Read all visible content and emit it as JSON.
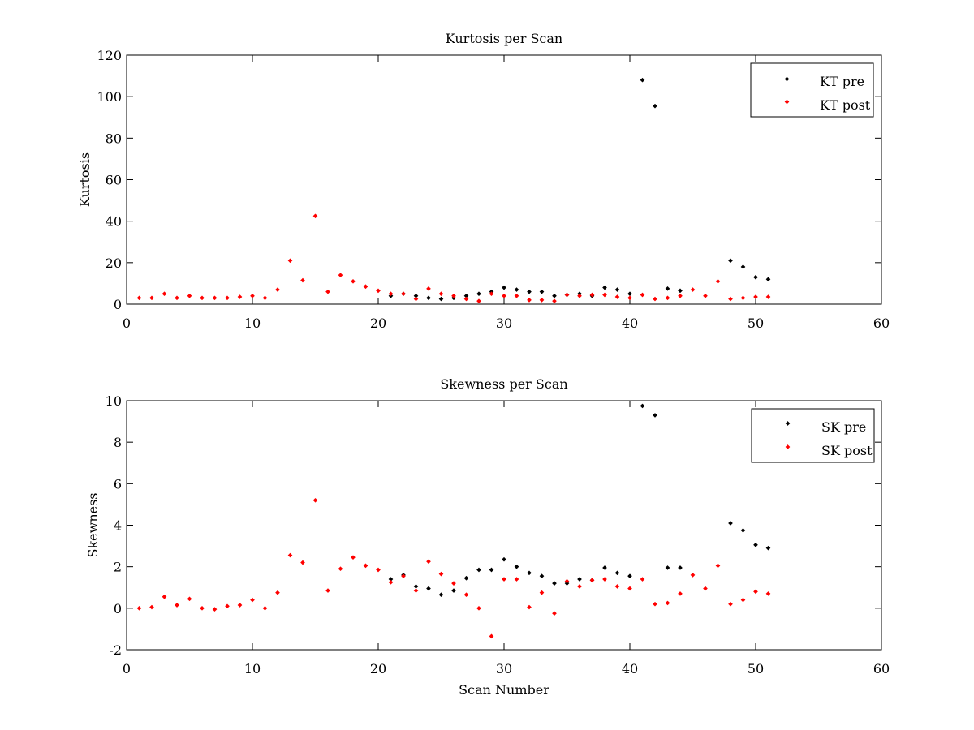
{
  "chart_data": [
    {
      "type": "scatter",
      "title": "Kurtosis per Scan",
      "xlabel": "",
      "ylabel": "Kurtosis",
      "xlim": [
        0,
        60
      ],
      "ylim": [
        0,
        120
      ],
      "xticks": [
        "0",
        "10",
        "20",
        "30",
        "40",
        "50",
        "60"
      ],
      "yticks": [
        "0",
        "20",
        "40",
        "60",
        "80",
        "100",
        "120"
      ],
      "grid": false,
      "legend_position": "top-right",
      "series": [
        {
          "name": "KT pre",
          "color": "#000000",
          "x": [
            21,
            22,
            23,
            24,
            25,
            26,
            27,
            28,
            29,
            30,
            31,
            32,
            33,
            34,
            35,
            36,
            37,
            38,
            39,
            40,
            41,
            42,
            43,
            44,
            48,
            49,
            50,
            51
          ],
          "y": [
            4,
            5,
            4,
            3,
            2.5,
            3,
            4,
            5,
            6,
            8,
            7,
            6,
            6,
            4,
            4.5,
            5,
            4,
            8,
            7,
            5,
            108,
            95.5,
            7.5,
            6.5,
            21,
            18,
            13,
            12
          ]
        },
        {
          "name": "KT post",
          "color": "#ff0000",
          "x": [
            1,
            2,
            3,
            4,
            5,
            6,
            7,
            8,
            9,
            10,
            11,
            12,
            13,
            14,
            15,
            16,
            17,
            18,
            19,
            20,
            21,
            22,
            23,
            24,
            25,
            26,
            27,
            28,
            29,
            30,
            31,
            32,
            33,
            34,
            35,
            36,
            37,
            38,
            39,
            40,
            41,
            42,
            43,
            44,
            45,
            46,
            47,
            48,
            49,
            50,
            51
          ],
          "y": [
            3,
            3,
            5,
            3,
            4,
            3,
            3,
            3,
            3.5,
            4,
            3,
            7,
            21,
            11.5,
            42.5,
            6,
            14,
            11,
            8.5,
            6.5,
            5,
            5,
            2.5,
            7.5,
            5,
            4,
            2.5,
            1.5,
            5,
            4,
            4,
            2,
            2,
            1.5,
            4.5,
            4,
            4.5,
            4.5,
            3.5,
            3,
            4.5,
            2.5,
            3,
            4,
            7,
            4,
            11,
            2.5,
            3,
            3.5,
            3.5
          ]
        }
      ]
    },
    {
      "type": "scatter",
      "title": "Skewness per Scan",
      "xlabel": "Scan Number",
      "ylabel": "Skewness",
      "xlim": [
        0,
        60
      ],
      "ylim": [
        -2,
        10
      ],
      "xticks": [
        "0",
        "10",
        "20",
        "30",
        "40",
        "50",
        "60"
      ],
      "yticks": [
        "-2",
        "0",
        "2",
        "4",
        "6",
        "8",
        "10"
      ],
      "grid": false,
      "legend_position": "top-right",
      "series": [
        {
          "name": "SK pre",
          "color": "#000000",
          "x": [
            21,
            22,
            23,
            24,
            25,
            26,
            27,
            28,
            29,
            30,
            31,
            32,
            33,
            34,
            35,
            36,
            37,
            38,
            39,
            40,
            41,
            42,
            43,
            44,
            48,
            49,
            50,
            51
          ],
          "y": [
            1.4,
            1.6,
            1.05,
            0.95,
            0.65,
            0.85,
            1.45,
            1.85,
            1.85,
            2.35,
            2.0,
            1.7,
            1.55,
            1.2,
            1.2,
            1.4,
            1.35,
            1.95,
            1.7,
            1.55,
            9.75,
            9.3,
            1.95,
            1.95,
            4.1,
            3.75,
            3.05,
            2.9
          ]
        },
        {
          "name": "SK post",
          "color": "#ff0000",
          "x": [
            1,
            2,
            3,
            4,
            5,
            6,
            7,
            8,
            9,
            10,
            11,
            12,
            13,
            14,
            15,
            16,
            17,
            18,
            19,
            20,
            21,
            22,
            23,
            24,
            25,
            26,
            27,
            28,
            29,
            30,
            31,
            32,
            33,
            34,
            35,
            36,
            37,
            38,
            39,
            40,
            41,
            42,
            43,
            44,
            45,
            46,
            47,
            48,
            49,
            50,
            51
          ],
          "y": [
            0.0,
            0.05,
            0.55,
            0.15,
            0.45,
            0.0,
            -0.05,
            0.1,
            0.15,
            0.4,
            0.0,
            0.75,
            2.55,
            2.2,
            5.2,
            0.85,
            1.9,
            2.45,
            2.05,
            1.85,
            1.25,
            1.55,
            0.85,
            2.25,
            1.65,
            1.2,
            0.65,
            0.0,
            -1.35,
            1.4,
            1.4,
            0.05,
            0.75,
            -0.25,
            1.3,
            1.05,
            1.35,
            1.4,
            1.05,
            0.95,
            1.4,
            0.2,
            0.25,
            0.7,
            1.6,
            0.95,
            2.05,
            0.2,
            0.4,
            0.8,
            0.7
          ]
        }
      ]
    }
  ]
}
